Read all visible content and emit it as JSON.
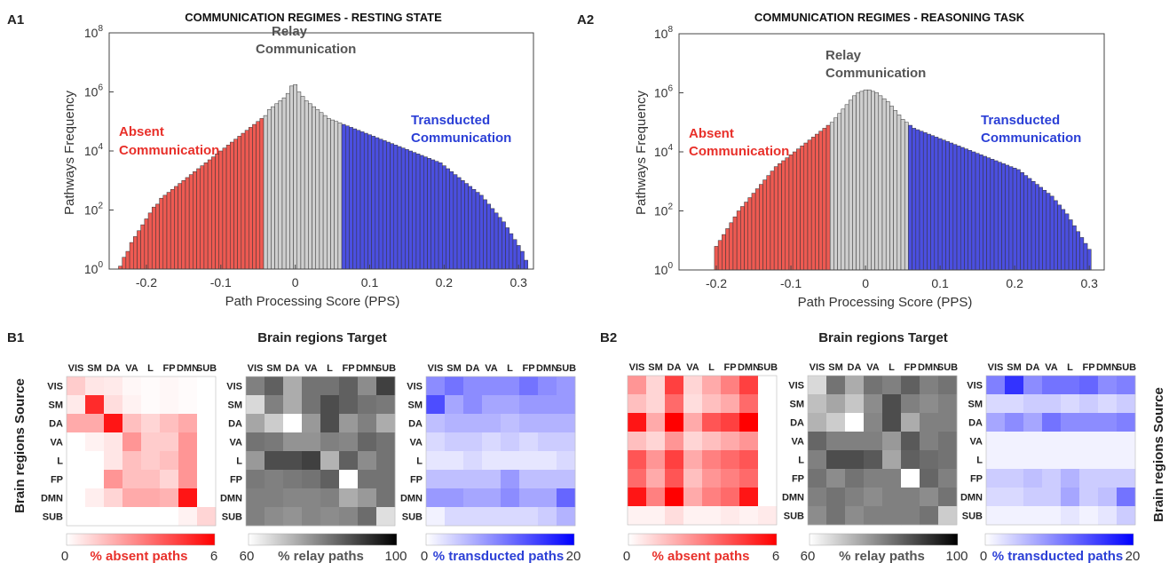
{
  "panels": {
    "a1_tag": "A1",
    "a2_tag": "A2",
    "b1_tag": "B1",
    "b2_tag": "B2"
  },
  "histogram_regions": {
    "absent_line1": "Absent",
    "absent_line2": "Communication",
    "relay_line1": "Relay",
    "relay_line2": "Communication",
    "transducted_line1": "Transducted",
    "transducted_line2": "Communication"
  },
  "matrices": {
    "title": "Brain regions Target",
    "source_label": "Brain regions Source",
    "regions": [
      "VIS",
      "SM",
      "DA",
      "VA",
      "L",
      "FP",
      "DMN",
      "SUB"
    ],
    "colorbars": {
      "absent": {
        "label": "% absent paths",
        "min": "0",
        "max": "6"
      },
      "relay": {
        "label": "% relay paths",
        "min": "60",
        "max": "100"
      },
      "transducted": {
        "label": "% transducted paths",
        "min": "0",
        "max": "20"
      }
    }
  },
  "colors": {
    "absent": "#ee5a52",
    "relay": "#cfcfcf",
    "transducted": "#4b4fe0",
    "absent_text": "#e8302a",
    "relay_text": "#555555",
    "transducted_text": "#2b3fd6"
  },
  "chart_data": [
    {
      "type": "bar",
      "title": "COMMUNICATION REGIMES - RESTING STATE",
      "xlabel": "Path Processing Score (PPS)",
      "ylabel": "Pathways Frequency",
      "y_scale": "log",
      "xlim": [
        -0.25,
        0.32
      ],
      "ylim": [
        1,
        100000000
      ],
      "xticks": [
        "-0.2",
        "-0.1",
        "0",
        "0.1",
        "0.2",
        "0.3"
      ],
      "yticks": [
        "10^0",
        "10^2",
        "10^4",
        "10^6",
        "10^8"
      ],
      "bin_width": 0.005,
      "absent_below": -0.04,
      "transducted_above": 0.065,
      "bins": [
        -0.235,
        -0.23,
        -0.225,
        -0.22,
        -0.215,
        -0.21,
        -0.205,
        -0.2,
        -0.195,
        -0.19,
        -0.185,
        -0.18,
        -0.175,
        -0.17,
        -0.165,
        -0.16,
        -0.155,
        -0.15,
        -0.145,
        -0.14,
        -0.135,
        -0.13,
        -0.125,
        -0.12,
        -0.115,
        -0.11,
        -0.105,
        -0.1,
        -0.095,
        -0.09,
        -0.085,
        -0.08,
        -0.075,
        -0.07,
        -0.065,
        -0.06,
        -0.055,
        -0.05,
        -0.045,
        -0.04,
        -0.035,
        -0.03,
        -0.025,
        -0.02,
        -0.015,
        -0.01,
        -0.005,
        0,
        0.005,
        0.01,
        0.015,
        0.02,
        0.025,
        0.03,
        0.035,
        0.04,
        0.045,
        0.05,
        0.055,
        0.06,
        0.065,
        0.07,
        0.075,
        0.08,
        0.085,
        0.09,
        0.095,
        0.1,
        0.105,
        0.11,
        0.115,
        0.12,
        0.125,
        0.13,
        0.135,
        0.14,
        0.145,
        0.15,
        0.155,
        0.16,
        0.165,
        0.17,
        0.175,
        0.18,
        0.185,
        0.19,
        0.195,
        0.2,
        0.205,
        0.21,
        0.215,
        0.22,
        0.225,
        0.23,
        0.235,
        0.24,
        0.245,
        0.25,
        0.255,
        0.26,
        0.265,
        0.27,
        0.275,
        0.28,
        0.285,
        0.29,
        0.295,
        0.3,
        0.305,
        0.31
      ],
      "log10_counts": [
        0.1,
        0.4,
        0.6,
        0.9,
        1.1,
        1.3,
        1.5,
        1.7,
        1.9,
        2.1,
        2.2,
        2.4,
        2.5,
        2.6,
        2.7,
        2.8,
        2.9,
        3.0,
        3.1,
        3.2,
        3.3,
        3.4,
        3.5,
        3.6,
        3.7,
        3.8,
        3.9,
        4.0,
        4.1,
        4.2,
        4.3,
        4.4,
        4.5,
        4.6,
        4.7,
        4.8,
        4.9,
        5.0,
        5.1,
        5.2,
        5.4,
        5.5,
        5.6,
        5.7,
        5.8,
        5.95,
        6.2,
        6.25,
        6.0,
        5.85,
        5.7,
        5.6,
        5.5,
        5.4,
        5.3,
        5.2,
        5.1,
        5.05,
        5.0,
        4.95,
        4.9,
        4.85,
        4.8,
        4.75,
        4.7,
        4.65,
        4.6,
        4.55,
        4.5,
        4.45,
        4.4,
        4.35,
        4.3,
        4.25,
        4.2,
        4.15,
        4.1,
        4.05,
        4.0,
        3.95,
        3.9,
        3.85,
        3.8,
        3.75,
        3.7,
        3.65,
        3.6,
        3.5,
        3.4,
        3.3,
        3.2,
        3.1,
        3.0,
        2.9,
        2.8,
        2.7,
        2.6,
        2.5,
        2.35,
        2.2,
        2.05,
        1.9,
        1.75,
        1.6,
        1.4,
        1.2,
        1.0,
        0.8,
        0.6,
        0.3
      ]
    },
    {
      "type": "bar",
      "title": "COMMUNICATION REGIMES - REASONING TASK",
      "xlabel": "Path Processing Score (PPS)",
      "ylabel": "Pathways Frequency",
      "y_scale": "log",
      "xlim": [
        -0.25,
        0.32
      ],
      "ylim": [
        1,
        100000000
      ],
      "xticks": [
        "-0.2",
        "-0.1",
        "0",
        "0.1",
        "0.2",
        "0.3"
      ],
      "yticks": [
        "10^0",
        "10^2",
        "10^4",
        "10^6",
        "10^8"
      ],
      "bin_width": 0.005,
      "absent_below": -0.045,
      "transducted_above": 0.06,
      "bins": [
        -0.2,
        -0.195,
        -0.19,
        -0.185,
        -0.18,
        -0.175,
        -0.17,
        -0.165,
        -0.16,
        -0.155,
        -0.15,
        -0.145,
        -0.14,
        -0.135,
        -0.13,
        -0.125,
        -0.12,
        -0.115,
        -0.11,
        -0.105,
        -0.1,
        -0.095,
        -0.09,
        -0.085,
        -0.08,
        -0.075,
        -0.07,
        -0.065,
        -0.06,
        -0.055,
        -0.05,
        -0.045,
        -0.04,
        -0.035,
        -0.03,
        -0.025,
        -0.02,
        -0.015,
        -0.01,
        -0.005,
        0,
        0.005,
        0.01,
        0.015,
        0.02,
        0.025,
        0.03,
        0.035,
        0.04,
        0.045,
        0.05,
        0.055,
        0.06,
        0.065,
        0.07,
        0.075,
        0.08,
        0.085,
        0.09,
        0.095,
        0.1,
        0.105,
        0.11,
        0.115,
        0.12,
        0.125,
        0.13,
        0.135,
        0.14,
        0.145,
        0.15,
        0.155,
        0.16,
        0.165,
        0.17,
        0.175,
        0.18,
        0.185,
        0.19,
        0.195,
        0.2,
        0.205,
        0.21,
        0.215,
        0.22,
        0.225,
        0.23,
        0.235,
        0.24,
        0.245,
        0.25,
        0.255,
        0.26,
        0.265,
        0.27,
        0.275,
        0.28,
        0.285,
        0.29,
        0.295,
        0.3
      ],
      "log10_counts": [
        0.8,
        1.0,
        1.2,
        1.4,
        1.6,
        1.8,
        2.0,
        2.15,
        2.3,
        2.45,
        2.6,
        2.75,
        2.9,
        3.05,
        3.2,
        3.35,
        3.5,
        3.6,
        3.7,
        3.8,
        3.9,
        4.0,
        4.1,
        4.2,
        4.3,
        4.4,
        4.5,
        4.6,
        4.7,
        4.8,
        4.9,
        5.0,
        5.15,
        5.3,
        5.45,
        5.6,
        5.75,
        5.9,
        6.0,
        6.05,
        6.1,
        6.1,
        6.05,
        6.0,
        5.9,
        5.8,
        5.7,
        5.55,
        5.4,
        5.25,
        5.1,
        5.0,
        4.9,
        4.8,
        4.75,
        4.7,
        4.65,
        4.6,
        4.55,
        4.5,
        4.45,
        4.4,
        4.35,
        4.3,
        4.25,
        4.2,
        4.15,
        4.1,
        4.05,
        4.0,
        3.95,
        3.9,
        3.85,
        3.8,
        3.75,
        3.7,
        3.65,
        3.6,
        3.55,
        3.5,
        3.45,
        3.4,
        3.3,
        3.2,
        3.1,
        3.0,
        2.9,
        2.8,
        2.7,
        2.6,
        2.5,
        2.35,
        2.2,
        2.05,
        1.9,
        1.7,
        1.5,
        1.3,
        1.1,
        0.9,
        0.7
      ]
    },
    {
      "type": "heatmap",
      "panel": "B1",
      "metric": "% absent paths",
      "vmin": 0,
      "vmax": 6,
      "rows": [
        "VIS",
        "SM",
        "DA",
        "VA",
        "L",
        "FP",
        "DMN",
        "SUB"
      ],
      "cols": [
        "VIS",
        "SM",
        "DA",
        "VA",
        "L",
        "FP",
        "DMN",
        "SUB"
      ],
      "values": [
        [
          1.2,
          0.6,
          0.5,
          0.2,
          0.1,
          0.2,
          0.1,
          0.0
        ],
        [
          0.5,
          5.0,
          0.8,
          0.3,
          0.1,
          0.2,
          0.1,
          0.0
        ],
        [
          2.0,
          2.0,
          5.5,
          1.5,
          1.0,
          1.5,
          2.0,
          0.0
        ],
        [
          0.0,
          0.3,
          0.6,
          2.5,
          1.2,
          1.2,
          2.5,
          0.0
        ],
        [
          0.0,
          0.0,
          0.6,
          1.5,
          1.2,
          1.5,
          2.5,
          0.0
        ],
        [
          0.0,
          0.0,
          2.5,
          1.5,
          1.5,
          1.0,
          2.5,
          0.0
        ],
        [
          0.0,
          0.4,
          1.0,
          2.0,
          2.0,
          1.8,
          5.5,
          0.0
        ],
        [
          0.0,
          0.0,
          0.0,
          0.0,
          0.0,
          0.0,
          0.3,
          1.0
        ]
      ]
    },
    {
      "type": "heatmap",
      "panel": "B1",
      "metric": "% relay paths",
      "vmin": 60,
      "vmax": 100,
      "rows": [
        "VIS",
        "SM",
        "DA",
        "VA",
        "L",
        "FP",
        "DMN",
        "SUB"
      ],
      "cols": [
        "VIS",
        "SM",
        "DA",
        "VA",
        "L",
        "FP",
        "DMN",
        "SUB"
      ],
      "values": [
        [
          80,
          85,
          73,
          82,
          82,
          85,
          78,
          90
        ],
        [
          66,
          80,
          73,
          82,
          88,
          85,
          82,
          81
        ],
        [
          74,
          68,
          60,
          76,
          88,
          76,
          80,
          73
        ],
        [
          82,
          81,
          77,
          77,
          80,
          79,
          84,
          82
        ],
        [
          76,
          88,
          88,
          90,
          72,
          85,
          78,
          82
        ],
        [
          81,
          80,
          81,
          82,
          85,
          60,
          82,
          82
        ],
        [
          80,
          80,
          79,
          79,
          80,
          73,
          76,
          82
        ],
        [
          80,
          78,
          77,
          79,
          78,
          79,
          83,
          65
        ]
      ]
    },
    {
      "type": "heatmap",
      "panel": "B1",
      "metric": "% transducted paths",
      "vmin": 0,
      "vmax": 20,
      "rows": [
        "VIS",
        "SM",
        "DA",
        "VA",
        "L",
        "FP",
        "DMN",
        "SUB"
      ],
      "cols": [
        "VIS",
        "SM",
        "DA",
        "VA",
        "L",
        "FP",
        "DMN",
        "SUB"
      ],
      "values": [
        [
          9,
          11,
          9,
          9,
          9,
          11,
          9,
          8
        ],
        [
          14,
          7,
          9,
          7,
          7,
          8,
          8,
          8
        ],
        [
          5,
          6,
          6,
          6,
          5,
          6,
          6,
          6
        ],
        [
          3,
          4,
          4,
          3,
          4,
          3,
          4,
          4
        ],
        [
          2,
          2,
          3,
          2,
          2,
          2,
          2,
          3
        ],
        [
          5,
          5,
          5,
          5,
          8,
          5,
          5,
          5
        ],
        [
          8,
          8,
          7,
          7,
          9,
          7,
          7,
          12
        ],
        [
          1,
          3,
          3,
          3,
          3,
          3,
          4,
          6
        ]
      ]
    },
    {
      "type": "heatmap",
      "panel": "B2",
      "metric": "% absent paths",
      "vmin": 0,
      "vmax": 6,
      "rows": [
        "VIS",
        "SM",
        "DA",
        "VA",
        "L",
        "FP",
        "DMN",
        "SUB"
      ],
      "cols": [
        "VIS",
        "SM",
        "DA",
        "VA",
        "L",
        "FP",
        "DMN",
        "SUB"
      ],
      "values": [
        [
          2.5,
          1.0,
          4.5,
          1.0,
          2.0,
          3.0,
          4.5,
          0.0
        ],
        [
          1.5,
          1.0,
          3.5,
          0.8,
          1.5,
          2.0,
          3.5,
          0.0
        ],
        [
          5.5,
          2.0,
          6.0,
          2.0,
          4.0,
          4.5,
          6.0,
          0.0
        ],
        [
          1.5,
          1.0,
          2.5,
          1.0,
          1.5,
          2.0,
          2.5,
          0.0
        ],
        [
          4.0,
          2.5,
          4.5,
          2.0,
          3.0,
          3.5,
          4.0,
          0.0
        ],
        [
          3.5,
          2.0,
          4.0,
          1.5,
          2.5,
          3.0,
          3.5,
          0.0
        ],
        [
          5.5,
          3.0,
          6.0,
          2.0,
          3.0,
          3.5,
          5.5,
          0.0
        ],
        [
          0.3,
          0.3,
          0.8,
          0.3,
          0.3,
          0.5,
          0.3,
          0.5
        ]
      ]
    },
    {
      "type": "heatmap",
      "panel": "B2",
      "metric": "% relay paths",
      "vmin": 60,
      "vmax": 100,
      "rows": [
        "VIS",
        "SM",
        "DA",
        "VA",
        "L",
        "FP",
        "DMN",
        "SUB"
      ],
      "cols": [
        "VIS",
        "SM",
        "DA",
        "VA",
        "L",
        "FP",
        "DMN",
        "SUB"
      ],
      "values": [
        [
          66,
          82,
          73,
          82,
          80,
          85,
          80,
          82
        ],
        [
          70,
          74,
          69,
          78,
          88,
          80,
          78,
          80
        ],
        [
          72,
          68,
          60,
          79,
          88,
          73,
          80,
          80
        ],
        [
          84,
          80,
          80,
          80,
          76,
          86,
          80,
          82
        ],
        [
          80,
          88,
          88,
          86,
          74,
          85,
          83,
          82
        ],
        [
          82,
          78,
          82,
          80,
          80,
          60,
          84,
          80
        ],
        [
          80,
          82,
          80,
          78,
          80,
          80,
          78,
          82
        ],
        [
          78,
          82,
          78,
          80,
          80,
          80,
          82,
          68
        ]
      ]
    },
    {
      "type": "heatmap",
      "panel": "B2",
      "metric": "% transducted paths",
      "vmin": 0,
      "vmax": 20,
      "rows": [
        "VIS",
        "SM",
        "DA",
        "VA",
        "L",
        "FP",
        "DMN",
        "SUB"
      ],
      "cols": [
        "VIS",
        "SM",
        "DA",
        "VA",
        "L",
        "FP",
        "DMN",
        "SUB"
      ],
      "values": [
        [
          10,
          16,
          9,
          11,
          11,
          12,
          9,
          10
        ],
        [
          3,
          3,
          4,
          4,
          3,
          4,
          3,
          4
        ],
        [
          7,
          9,
          7,
          11,
          9,
          9,
          9,
          10
        ],
        [
          1,
          1,
          1,
          1,
          1,
          1,
          1,
          1
        ],
        [
          1,
          1,
          1,
          1,
          1,
          1,
          1,
          1
        ],
        [
          4,
          4,
          5,
          4,
          6,
          4,
          4,
          4
        ],
        [
          3,
          3,
          4,
          4,
          7,
          4,
          5,
          11
        ],
        [
          1,
          1,
          1,
          1,
          2,
          1,
          2,
          4
        ]
      ]
    }
  ]
}
